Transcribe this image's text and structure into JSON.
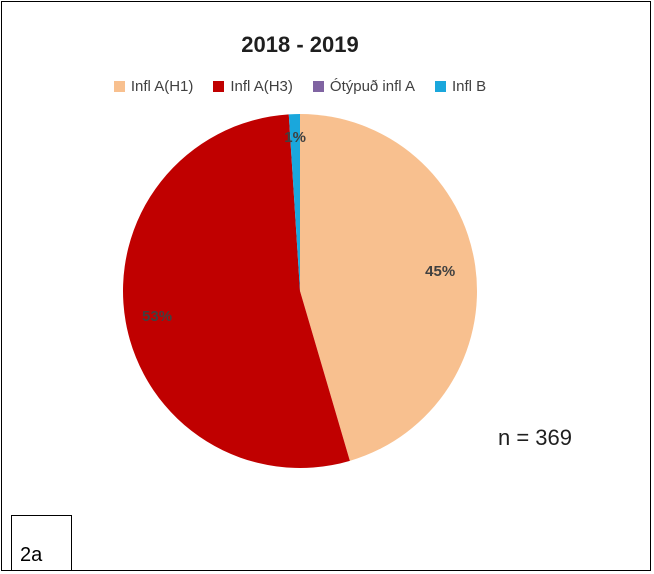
{
  "title": "2018 - 2019",
  "n_label": "n = 369",
  "figure_tag": "2a",
  "chart_data": {
    "type": "pie",
    "title": "2018 - 2019",
    "legend_position": "top",
    "slices": [
      {
        "name": "Infl A(H1)",
        "value": 45,
        "label": "45%",
        "color": "#f8c08f"
      },
      {
        "name": "Infl A(H3)",
        "value": 53,
        "label": "53%",
        "color": "#c00000"
      },
      {
        "name": "Ótýpuð infl A",
        "value": 0,
        "label": "",
        "color": "#8064a2"
      },
      {
        "name": "Infl B",
        "value": 1,
        "label": "1%",
        "color": "#1aa7dc"
      }
    ]
  }
}
